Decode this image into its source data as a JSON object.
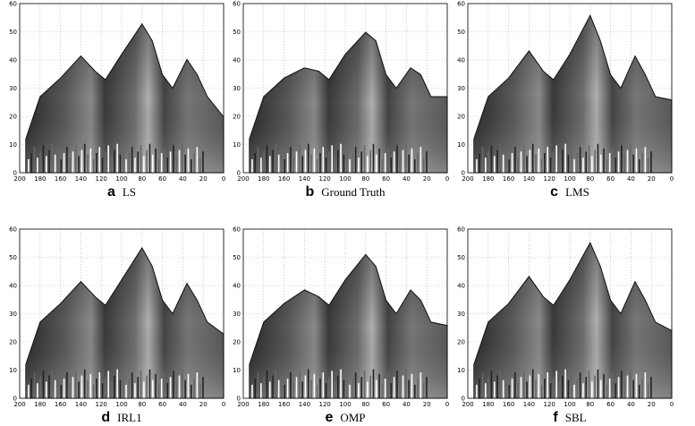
{
  "axes": {
    "xlim": [
      200,
      0
    ],
    "ylim": [
      0,
      60
    ],
    "xticks": [
      200,
      180,
      160,
      140,
      120,
      100,
      80,
      60,
      40,
      20,
      0
    ],
    "yticks": [
      0,
      10,
      20,
      30,
      40,
      50,
      60
    ],
    "grid": true
  },
  "panels": [
    {
      "letter": "a",
      "label": "LS"
    },
    {
      "letter": "b",
      "label": "Ground Truth"
    },
    {
      "letter": "c",
      "label": "LMS"
    },
    {
      "letter": "d",
      "label": "IRL1"
    },
    {
      "letter": "e",
      "label": "OMP"
    },
    {
      "letter": "f",
      "label": "SBL"
    }
  ]
}
